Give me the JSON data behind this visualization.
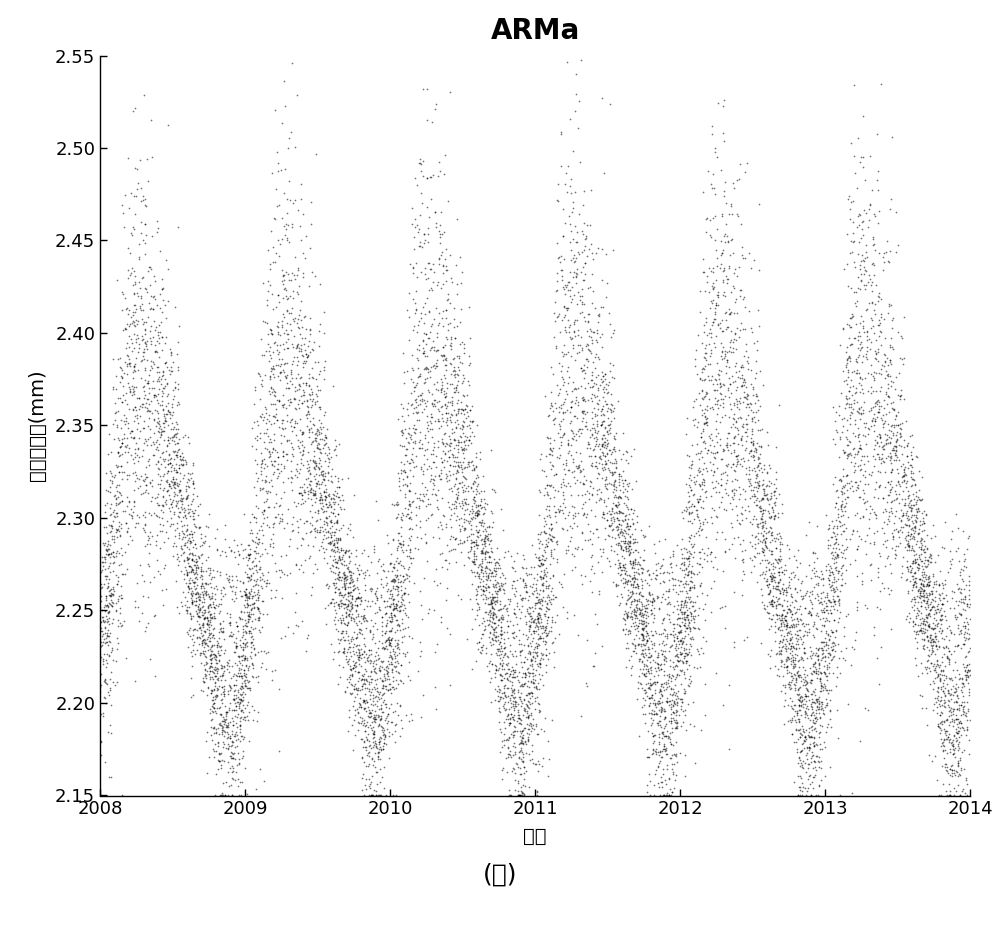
{
  "title": "ARMa",
  "xlabel": "年份",
  "ylabel": "对流层延迟(mm)",
  "xlim": [
    2008.0,
    2014.0
  ],
  "ylim": [
    2.15,
    2.55
  ],
  "yticks": [
    2.15,
    2.2,
    2.25,
    2.3,
    2.35,
    2.4,
    2.45,
    2.5,
    2.55
  ],
  "xticks": [
    2008,
    2009,
    2010,
    2011,
    2012,
    2013,
    2014
  ],
  "dot_color": "#000000",
  "dot_size": 1.5,
  "background_color": "#ffffff",
  "caption": "(ａ)",
  "title_fontsize": 20,
  "label_fontsize": 14,
  "tick_fontsize": 13,
  "caption_fontsize": 18,
  "seed": 42,
  "n_points": 12000
}
